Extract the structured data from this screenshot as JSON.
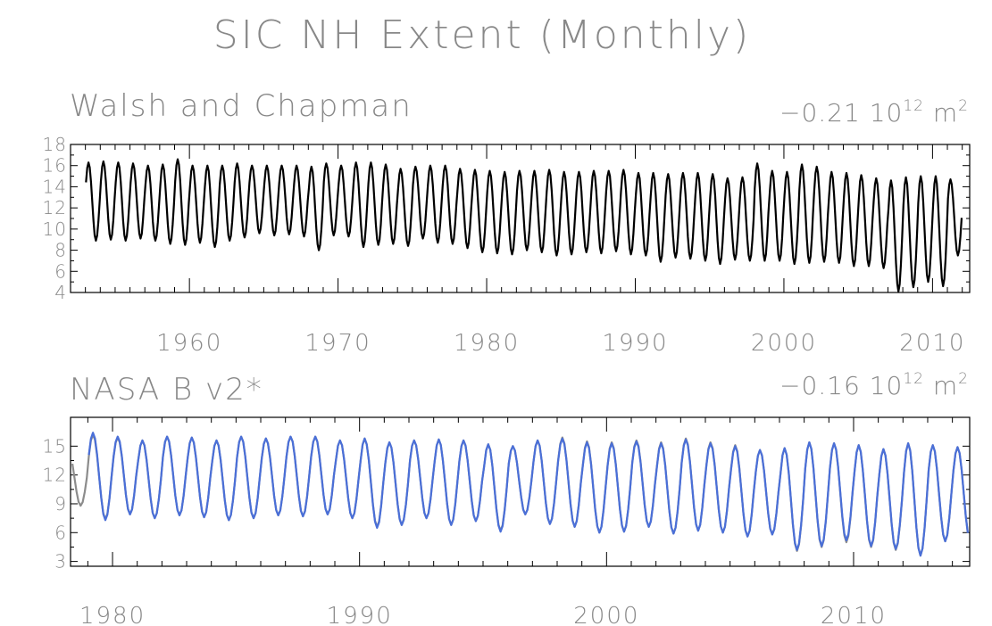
{
  "title": "SIC NH Extent (Monthly)",
  "chart_data": [
    {
      "type": "line",
      "title": "Walsh and Chapman",
      "trend": "−0.21",
      "unit_base": "10",
      "unit_exp": "12",
      "unit_suffix": "m",
      "unit_suffix_exp": "2",
      "xlim": [
        1952.0,
        2012.5
      ],
      "ylim": [
        4,
        18
      ],
      "yticks": [
        4,
        6,
        8,
        10,
        12,
        14,
        16,
        18
      ],
      "xticks": [
        1960,
        1970,
        1980,
        1990,
        2000,
        2010
      ],
      "series": [
        {
          "color": "#000000",
          "start_year": 1953,
          "end_year": 2011,
          "annual_max": [
            16.3,
            16.4,
            16.3,
            16.2,
            16.0,
            16.1,
            16.6,
            16.0,
            16.0,
            16.0,
            16.2,
            16.0,
            16.0,
            16.0,
            16.0,
            15.9,
            16.2,
            16.0,
            16.3,
            16.3,
            16.1,
            15.7,
            15.9,
            16.0,
            16.0,
            15.7,
            15.6,
            15.5,
            15.4,
            15.5,
            15.5,
            15.6,
            15.4,
            15.4,
            15.5,
            15.5,
            15.6,
            15.3,
            15.3,
            15.2,
            15.3,
            15.3,
            15.2,
            14.8,
            14.9,
            16.2,
            15.5,
            15.4,
            16.1,
            15.9,
            15.4,
            15.3,
            15.1,
            14.8,
            14.6,
            14.9,
            15.0,
            15.0,
            14.7
          ],
          "annual_min": [
            8.9,
            9.0,
            8.9,
            9.1,
            8.9,
            8.6,
            8.5,
            8.7,
            8.3,
            8.9,
            9.2,
            9.6,
            9.4,
            9.5,
            9.3,
            8.0,
            9.4,
            9.3,
            8.3,
            8.5,
            8.6,
            8.4,
            9.1,
            8.7,
            8.6,
            8.2,
            7.8,
            7.7,
            7.6,
            8.0,
            7.8,
            7.5,
            7.6,
            7.8,
            7.7,
            7.9,
            7.6,
            7.5,
            6.9,
            7.3,
            7.2,
            7.0,
            6.7,
            7.1,
            7.0,
            7.0,
            7.0,
            6.7,
            6.8,
            6.9,
            6.8,
            6.5,
            6.5,
            6.3,
            4.1,
            4.5,
            5.0,
            4.6,
            7.5
          ]
        }
      ]
    },
    {
      "type": "line",
      "title": "NASA B v2*",
      "trend": "−0.16",
      "unit_base": "10",
      "unit_exp": "12",
      "unit_suffix": "m",
      "unit_suffix_exp": "2",
      "xlim": [
        1978.3,
        2014.7
      ],
      "ylim": [
        2.5,
        18
      ],
      "yticks": [
        3,
        6,
        9,
        12,
        15
      ],
      "xticks": [
        1980,
        1990,
        2000,
        2010
      ],
      "series": [
        {
          "color": "#4a6fd8",
          "start_year": 1979,
          "end_year": 2014,
          "annual_max": [
            16.4,
            16.0,
            15.6,
            16.0,
            15.9,
            15.6,
            16.0,
            15.8,
            16.0,
            16.0,
            15.6,
            15.8,
            15.4,
            15.6,
            15.7,
            15.6,
            15.2,
            15.0,
            15.6,
            15.8,
            15.4,
            15.3,
            15.5,
            15.3,
            15.7,
            15.3,
            15.0,
            14.6,
            14.8,
            15.4,
            15.3,
            15.1,
            14.7,
            15.3,
            15.1,
            14.9
          ],
          "annual_min": [
            7.3,
            7.9,
            7.5,
            7.8,
            7.6,
            7.3,
            7.5,
            7.8,
            7.7,
            7.9,
            7.5,
            6.5,
            6.8,
            7.5,
            6.8,
            7.2,
            6.1,
            7.9,
            6.9,
            6.6,
            6.0,
            6.1,
            6.6,
            5.9,
            6.2,
            6.0,
            5.6,
            5.8,
            4.2,
            4.6,
            5.2,
            4.6,
            4.3,
            3.6,
            5.1,
            5.3
          ]
        },
        {
          "color": "#8c8c8c",
          "start_year": 1978,
          "end_year": 2014,
          "annual_max": [
            14.6,
            16.2,
            15.9,
            15.6,
            16.0,
            15.9,
            15.6,
            16.0,
            15.8,
            16.0,
            16.0,
            15.6,
            15.8,
            15.4,
            15.6,
            15.7,
            15.6,
            15.2,
            15.0,
            15.6,
            15.9,
            15.5,
            15.4,
            15.6,
            15.4,
            15.8,
            15.4,
            15.1,
            14.6,
            14.8,
            15.4,
            15.3,
            15.1,
            14.7,
            15.3,
            15.1,
            14.9
          ],
          "annual_min": [
            8.8,
            7.4,
            7.9,
            7.5,
            7.8,
            7.6,
            7.3,
            7.5,
            7.8,
            7.7,
            7.9,
            7.5,
            6.6,
            6.8,
            7.5,
            6.8,
            7.2,
            6.2,
            7.9,
            6.9,
            6.6,
            6.0,
            6.1,
            6.6,
            5.9,
            6.2,
            6.0,
            5.6,
            5.8,
            4.1,
            4.5,
            5.0,
            4.5,
            4.2,
            3.6,
            5.1,
            5.3
          ]
        }
      ]
    }
  ]
}
